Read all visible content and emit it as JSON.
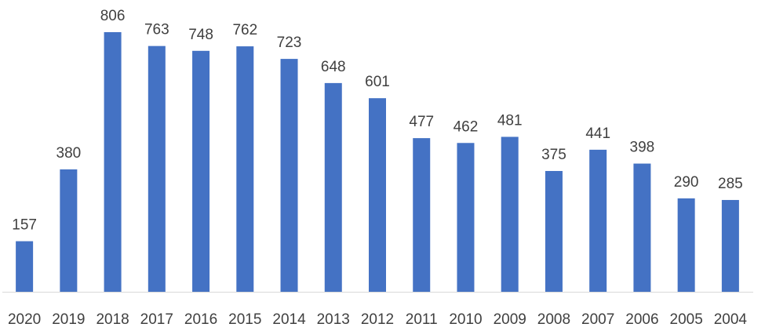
{
  "chart_data": {
    "type": "bar",
    "categories": [
      "2020",
      "2019",
      "2018",
      "2017",
      "2016",
      "2015",
      "2014",
      "2013",
      "2012",
      "2011",
      "2010",
      "2009",
      "2008",
      "2007",
      "2006",
      "2005",
      "2004"
    ],
    "values": [
      157,
      380,
      806,
      763,
      748,
      762,
      723,
      648,
      601,
      477,
      462,
      481,
      375,
      441,
      398,
      290,
      285
    ],
    "color": "#4472c4"
  }
}
